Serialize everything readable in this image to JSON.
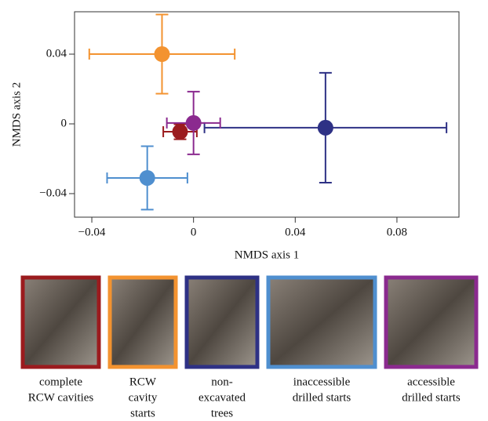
{
  "chart_data": {
    "type": "scatter",
    "xlabel": "NMDS axis 1",
    "ylabel": "NMDS axis 2",
    "xlim": [
      -0.0468,
      0.1044
    ],
    "ylim": [
      -0.0535,
      0.0643
    ],
    "xticks": [
      {
        "value": -0.04,
        "label": "−0.04"
      },
      0,
      0.04,
      0.08
    ],
    "yticks": [
      {
        "value": -0.04,
        "label": "−0.04"
      },
      0,
      0.04
    ],
    "series": [
      {
        "name": [
          "complete",
          "RCW cavities"
        ],
        "color": "#9b1b1e",
        "x": [
          -0.0053
        ],
        "values": [
          -0.0045
        ],
        "xerr": [
          0.0066
        ],
        "yerr": [
          0.0043
        ]
      },
      {
        "name": [
          "RCW",
          "cavity",
          "starts"
        ],
        "color": "#f39330",
        "x": [
          -0.0124
        ],
        "values": [
          0.04
        ],
        "xerr": [
          0.0286
        ],
        "yerr": [
          0.0227
        ]
      },
      {
        "name": [
          "non-",
          "excavated",
          "trees"
        ],
        "color": "#2e3185",
        "x": [
          0.0519
        ],
        "values": [
          -0.0022
        ],
        "xerr": [
          0.0476
        ],
        "yerr": [
          0.0315
        ]
      },
      {
        "name": [
          "inaccessible",
          "drilled starts"
        ],
        "color": "#4f8fcf",
        "x": [
          -0.0182
        ],
        "values": [
          -0.031
        ],
        "xerr": [
          0.0158
        ],
        "yerr": [
          0.0182
        ]
      },
      {
        "name": [
          "accessible",
          "drilled starts"
        ],
        "color": "#8b2a8f",
        "x": [
          0
        ],
        "values": [
          0.0005
        ],
        "xerr": [
          0.0105
        ],
        "yerr": [
          0.018
        ]
      }
    ]
  }
}
